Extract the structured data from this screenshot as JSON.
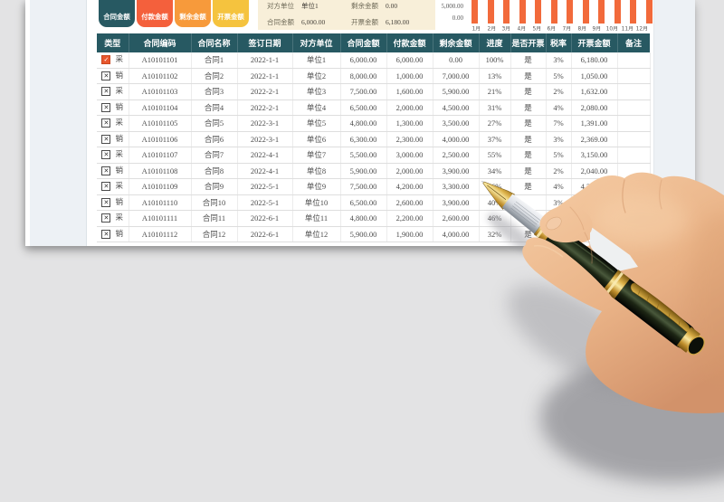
{
  "app": {
    "background_color": "#e3e3e4",
    "page_color": "#ffffff",
    "margin_color": "#edf1f5"
  },
  "toolbar": {
    "buttons": [
      {
        "key": "contract-amount",
        "label": "合同金额",
        "color": "#275962"
      },
      {
        "key": "payment-amount",
        "label": "付款金额",
        "color": "#f4603c"
      },
      {
        "key": "remaining-amount",
        "label": "剩余金额",
        "color": "#f79a3b"
      },
      {
        "key": "invoice-amount",
        "label": "开票金额",
        "color": "#f5c33e"
      }
    ]
  },
  "summary": {
    "background": "#f8efd9",
    "items": [
      {
        "label": "对方单位",
        "value": "单位1"
      },
      {
        "label": "剩余金额",
        "value": "0.00"
      },
      {
        "label": "合同金额",
        "value": "6,000.00"
      },
      {
        "label": "开票金额",
        "value": "6,180.00"
      }
    ]
  },
  "chart_data": {
    "type": "bar",
    "title": "",
    "categories": [
      "1月",
      "2月",
      "3月",
      "4月",
      "5月",
      "6月",
      "7月",
      "8月",
      "9月",
      "10月",
      "11月",
      "12月"
    ],
    "values": [
      6000,
      6000,
      6000,
      6000,
      6000,
      6000,
      6000,
      6000,
      6000,
      6000,
      6000,
      6000
    ],
    "note": "monthly amount bars, all equal height and cropped by the top edge of the screenshot",
    "yticks": [
      "5,000.00",
      "0.00"
    ],
    "ytick_top": "5,000.00",
    "ytick_bottom": "0.00",
    "ylim": [
      0,
      5000
    ],
    "bar_color": "#f26a3b",
    "grid": false,
    "legend": "none"
  },
  "table": {
    "header_bg": "#275962",
    "columns": [
      {
        "key": "type",
        "label": "类型",
        "width": 35
      },
      {
        "key": "code",
        "label": "合同编码",
        "width": 69
      },
      {
        "key": "name",
        "label": "合同名称",
        "width": 51
      },
      {
        "key": "date",
        "label": "签订日期",
        "width": 61
      },
      {
        "key": "party",
        "label": "对方单位",
        "width": 53
      },
      {
        "key": "amount",
        "label": "合同金额",
        "width": 51
      },
      {
        "key": "paid",
        "label": "付款金额",
        "width": 51
      },
      {
        "key": "remaining",
        "label": "剩余金额",
        "width": 51
      },
      {
        "key": "progress",
        "label": "进度",
        "width": 35
      },
      {
        "key": "invoiced",
        "label": "是否开票",
        "width": 39
      },
      {
        "key": "tax",
        "label": "税率",
        "width": 28
      },
      {
        "key": "invoice_amount",
        "label": "开票金额",
        "width": 51
      },
      {
        "key": "note",
        "label": "备注",
        "width": 36
      }
    ],
    "rows": [
      {
        "checked": true,
        "type": "采",
        "code": "A10101101",
        "name": "合同1",
        "date": "2022-1-1",
        "party": "单位1",
        "amount": "6,000.00",
        "paid": "6,000.00",
        "remaining": "0.00",
        "progress": "100%",
        "invoiced": "是",
        "tax": "3%",
        "invoice_amount": "6,180.00",
        "note": ""
      },
      {
        "checked": false,
        "type": "销",
        "code": "A10101102",
        "name": "合同2",
        "date": "2022-1-1",
        "party": "单位2",
        "amount": "8,000.00",
        "paid": "1,000.00",
        "remaining": "7,000.00",
        "progress": "13%",
        "invoiced": "是",
        "tax": "5%",
        "invoice_amount": "1,050.00",
        "note": ""
      },
      {
        "checked": false,
        "type": "采",
        "code": "A10101103",
        "name": "合同3",
        "date": "2022-2-1",
        "party": "单位3",
        "amount": "7,500.00",
        "paid": "1,600.00",
        "remaining": "5,900.00",
        "progress": "21%",
        "invoiced": "是",
        "tax": "2%",
        "invoice_amount": "1,632.00",
        "note": ""
      },
      {
        "checked": false,
        "type": "销",
        "code": "A10101104",
        "name": "合同4",
        "date": "2022-2-1",
        "party": "单位4",
        "amount": "6,500.00",
        "paid": "2,000.00",
        "remaining": "4,500.00",
        "progress": "31%",
        "invoiced": "是",
        "tax": "4%",
        "invoice_amount": "2,080.00",
        "note": ""
      },
      {
        "checked": false,
        "type": "采",
        "code": "A10101105",
        "name": "合同5",
        "date": "2022-3-1",
        "party": "单位5",
        "amount": "4,800.00",
        "paid": "1,300.00",
        "remaining": "3,500.00",
        "progress": "27%",
        "invoiced": "是",
        "tax": "7%",
        "invoice_amount": "1,391.00",
        "note": ""
      },
      {
        "checked": false,
        "type": "销",
        "code": "A10101106",
        "name": "合同6",
        "date": "2022-3-1",
        "party": "单位6",
        "amount": "6,300.00",
        "paid": "2,300.00",
        "remaining": "4,000.00",
        "progress": "37%",
        "invoiced": "是",
        "tax": "3%",
        "invoice_amount": "2,369.00",
        "note": ""
      },
      {
        "checked": false,
        "type": "采",
        "code": "A10101107",
        "name": "合同7",
        "date": "2022-4-1",
        "party": "单位7",
        "amount": "5,500.00",
        "paid": "3,000.00",
        "remaining": "2,500.00",
        "progress": "55%",
        "invoiced": "是",
        "tax": "5%",
        "invoice_amount": "3,150.00",
        "note": ""
      },
      {
        "checked": false,
        "type": "销",
        "code": "A10101108",
        "name": "合同8",
        "date": "2022-4-1",
        "party": "单位8",
        "amount": "5,900.00",
        "paid": "2,000.00",
        "remaining": "3,900.00",
        "progress": "34%",
        "invoiced": "是",
        "tax": "2%",
        "invoice_amount": "2,040.00",
        "note": ""
      },
      {
        "checked": false,
        "type": "采",
        "code": "A10101109",
        "name": "合同9",
        "date": "2022-5-1",
        "party": "单位9",
        "amount": "7,500.00",
        "paid": "4,200.00",
        "remaining": "3,300.00",
        "progress": "56%",
        "invoiced": "是",
        "tax": "4%",
        "invoice_amount": "4,368.00",
        "note": ""
      },
      {
        "checked": false,
        "type": "销",
        "code": "A10101110",
        "name": "合同10",
        "date": "2022-5-1",
        "party": "单位10",
        "amount": "6,500.00",
        "paid": "2,600.00",
        "remaining": "3,900.00",
        "progress": "40%",
        "invoiced": "",
        "tax": "3%",
        "invoice_amount": "",
        "note": ""
      },
      {
        "checked": false,
        "type": "采",
        "code": "A10101111",
        "name": "合同11",
        "date": "2022-6-1",
        "party": "单位11",
        "amount": "4,800.00",
        "paid": "2,200.00",
        "remaining": "2,600.00",
        "progress": "46%",
        "invoiced": "是",
        "tax": "",
        "invoice_amount": "",
        "note": ""
      },
      {
        "checked": false,
        "type": "销",
        "code": "A10101112",
        "name": "合同12",
        "date": "2022-6-1",
        "party": "单位12",
        "amount": "5,900.00",
        "paid": "1,900.00",
        "remaining": "4,000.00",
        "progress": "32%",
        "invoiced": "是",
        "tax": "",
        "invoice_amount": "",
        "note": ""
      }
    ]
  },
  "overlay": {
    "description": "right hand holding a dark fountain pen with gold trim over the lower-right of the sheet"
  }
}
